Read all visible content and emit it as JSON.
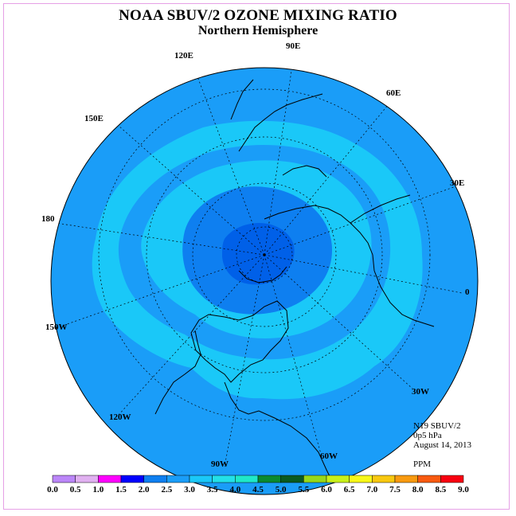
{
  "title": "NOAA SBUV/2 OZONE MIXING RATIO",
  "subtitle": "Northern Hemisphere",
  "info": {
    "satellite": "N19 SBUV/2",
    "level": "0p5 hPa",
    "date": "August 14, 2013",
    "units": "PPM"
  },
  "longitude_labels": [
    "90E",
    "60E",
    "30E",
    "0",
    "30W",
    "60W",
    "90W",
    "120W",
    "150W",
    "180",
    "150E",
    "120E"
  ],
  "colorbar": {
    "ticks": [
      "0.0",
      "0.5",
      "1.0",
      "1.5",
      "2.0",
      "2.5",
      "3.0",
      "3.5",
      "4.0",
      "4.5",
      "5.0",
      "5.5",
      "6.0",
      "6.5",
      "7.0",
      "7.5",
      "8.0",
      "8.5",
      "9.0"
    ],
    "colors": [
      "#bb86f8",
      "#e0b0f0",
      "#ff00ff",
      "#0000ff",
      "#0e7ff0",
      "#1a9df8",
      "#1ac8f8",
      "#22e0e8",
      "#1fe8c8",
      "#0a8a30",
      "#0a5a20",
      "#98d81a",
      "#c8f01a",
      "#f8f818",
      "#f8c810",
      "#f89a10",
      "#f85a10",
      "#f80010",
      "#8a5a3a"
    ]
  },
  "map_colors": {
    "outer": "#1a9df8",
    "ring_2_5": "#1a9df8",
    "ring_3_0": "#1ac8f8",
    "ring_2_0": "#0e7ff0",
    "ring_1_5": "#0060e8"
  }
}
